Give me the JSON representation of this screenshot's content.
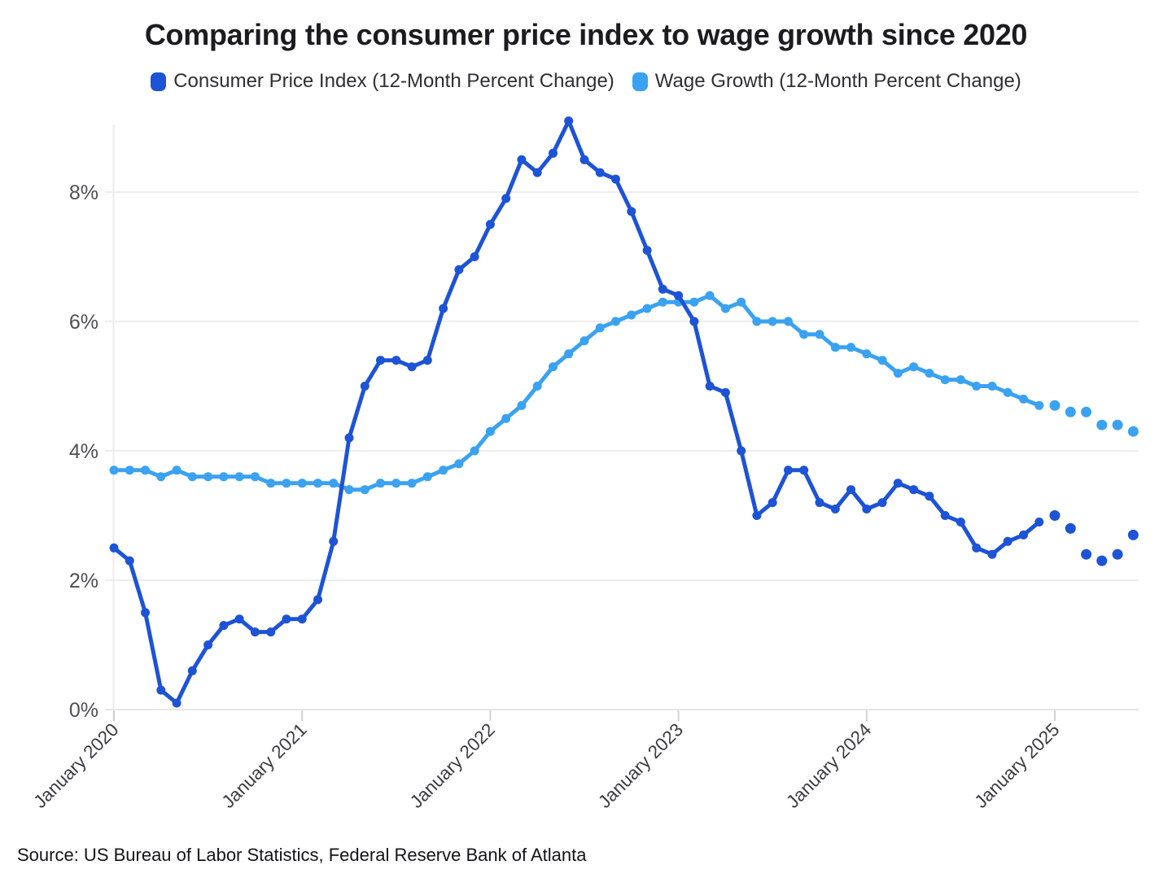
{
  "title": "Comparing the consumer price index to wage growth since 2020",
  "legend": [
    {
      "label": "Consumer Price Index (12-Month Percent Change)",
      "color": "#1d53d6"
    },
    {
      "label": "Wage Growth (12-Month Percent Change)",
      "color": "#3aa2f1"
    }
  ],
  "source": "Source: US Bureau of Labor Statistics, Federal Reserve Bank of Atlanta",
  "chart_data": {
    "type": "line",
    "title": "Comparing the consumer price index to wage growth since 2020",
    "x_months": [
      "2020-01",
      "2020-02",
      "2020-03",
      "2020-04",
      "2020-05",
      "2020-06",
      "2020-07",
      "2020-08",
      "2020-09",
      "2020-10",
      "2020-11",
      "2020-12",
      "2021-01",
      "2021-02",
      "2021-03",
      "2021-04",
      "2021-05",
      "2021-06",
      "2021-07",
      "2021-08",
      "2021-09",
      "2021-10",
      "2021-11",
      "2021-12",
      "2022-01",
      "2022-02",
      "2022-03",
      "2022-04",
      "2022-05",
      "2022-06",
      "2022-07",
      "2022-08",
      "2022-09",
      "2022-10",
      "2022-11",
      "2022-12",
      "2023-01",
      "2023-02",
      "2023-03",
      "2023-04",
      "2023-05",
      "2023-06",
      "2023-07",
      "2023-08",
      "2023-09",
      "2023-10",
      "2023-11",
      "2023-12",
      "2024-01",
      "2024-02",
      "2024-03",
      "2024-04",
      "2024-05",
      "2024-06",
      "2024-07",
      "2024-08",
      "2024-09",
      "2024-10",
      "2024-11",
      "2024-12",
      "2025-01",
      "2025-02",
      "2025-03",
      "2025-04",
      "2025-05",
      "2025-06"
    ],
    "series": [
      {
        "name": "Consumer Price Index (12-Month Percent Change)",
        "color": "#1d53d6",
        "values": [
          2.5,
          2.3,
          1.5,
          0.3,
          0.1,
          0.6,
          1.0,
          1.3,
          1.4,
          1.2,
          1.2,
          1.4,
          1.4,
          1.7,
          2.6,
          4.2,
          5.0,
          5.4,
          5.4,
          5.3,
          5.4,
          6.2,
          6.8,
          7.0,
          7.5,
          7.9,
          8.5,
          8.3,
          8.6,
          9.1,
          8.5,
          8.3,
          8.2,
          7.7,
          7.1,
          6.5,
          6.4,
          6.0,
          5.0,
          4.9,
          4.0,
          3.0,
          3.2,
          3.7,
          3.7,
          3.2,
          3.1,
          3.4,
          3.1,
          3.2,
          3.5,
          3.4,
          3.3,
          3.0,
          2.9,
          2.5,
          2.4,
          2.6,
          2.7,
          2.9,
          3.0,
          2.8,
          2.4,
          2.3,
          2.4,
          2.7
        ]
      },
      {
        "name": "Wage Growth (12-Month Percent Change)",
        "color": "#3aa2f1",
        "values": [
          3.7,
          3.7,
          3.7,
          3.6,
          3.7,
          3.6,
          3.6,
          3.6,
          3.6,
          3.6,
          3.5,
          3.5,
          3.5,
          3.5,
          3.5,
          3.4,
          3.4,
          3.5,
          3.5,
          3.5,
          3.6,
          3.7,
          3.8,
          4.0,
          4.3,
          4.5,
          4.7,
          5.0,
          5.3,
          5.5,
          5.7,
          5.9,
          6.0,
          6.1,
          6.2,
          6.3,
          6.3,
          6.3,
          6.4,
          6.2,
          6.3,
          6.0,
          6.0,
          6.0,
          5.8,
          5.8,
          5.6,
          5.6,
          5.5,
          5.4,
          5.2,
          5.3,
          5.2,
          5.1,
          5.1,
          5.0,
          5.0,
          4.9,
          4.8,
          4.7,
          4.7,
          4.6,
          4.6,
          4.4,
          4.4,
          4.3
        ]
      }
    ],
    "solid_line_through": "2024-12",
    "marker_only_tail_from": "2025-01",
    "x_ticks": [
      {
        "label": "January 2020",
        "month": "2020-01"
      },
      {
        "label": "January 2021",
        "month": "2021-01"
      },
      {
        "label": "January 2022",
        "month": "2022-01"
      },
      {
        "label": "January 2023",
        "month": "2023-01"
      },
      {
        "label": "January 2024",
        "month": "2024-01"
      },
      {
        "label": "January 2025",
        "month": "2025-01"
      }
    ],
    "y_ticks": [
      {
        "label": "0%",
        "value": 0
      },
      {
        "label": "2%",
        "value": 2
      },
      {
        "label": "4%",
        "value": 4
      },
      {
        "label": "6%",
        "value": 6
      },
      {
        "label": "8%",
        "value": 8
      }
    ],
    "ylim": [
      0,
      9.3
    ],
    "grid": "horizontal-only",
    "legend_position": "top",
    "source": "Source: US Bureau of Labor Statistics, Federal Reserve Bank of Atlanta"
  }
}
